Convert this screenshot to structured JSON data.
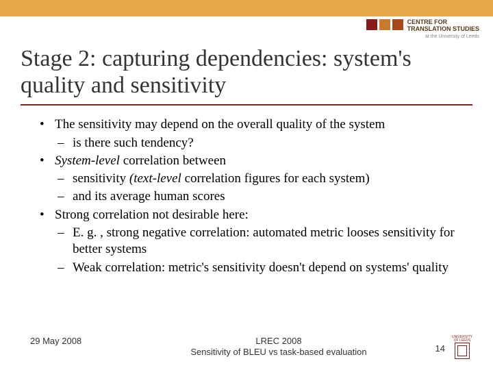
{
  "topbar_color": "#e6a84a",
  "logo": {
    "squares": [
      "#8a1a1a",
      "#c97a2a",
      "#a84818"
    ],
    "line1": "CENTRE FOR",
    "line2": "TRANSLATION STUDIES",
    "sub": "at the University of Leeds"
  },
  "title": "Stage 2: capturing dependencies: system's quality and sensitivity",
  "underline_color": "#8a1a1a",
  "bullets": [
    {
      "text": "The sensitivity may depend on the overall quality of the system",
      "subs": [
        {
          "text": "is there such tendency?"
        }
      ]
    },
    {
      "html": "<span class=\"italic\">System-level</span> correlation between",
      "subs": [
        {
          "html": "sensitivity <span class=\"italic\">(text-level</span> correlation figures for each system)"
        },
        {
          "text": "and its average human scores"
        }
      ]
    },
    {
      "text": "Strong correlation not desirable here:",
      "subs": [
        {
          "text": "E. g. , strong negative correlation: automated metric looses sensitivity for better systems"
        },
        {
          "text": "Weak correlation: metric's sensitivity doesn't depend on systems' quality"
        }
      ]
    }
  ],
  "footer": {
    "date": "29 May 2008",
    "center1": "LREC 2008",
    "center2": "Sensitivity of BLEU vs task-based evaluation",
    "page": "14",
    "crest_label": "UNIVERSITY OF LEEDS"
  }
}
